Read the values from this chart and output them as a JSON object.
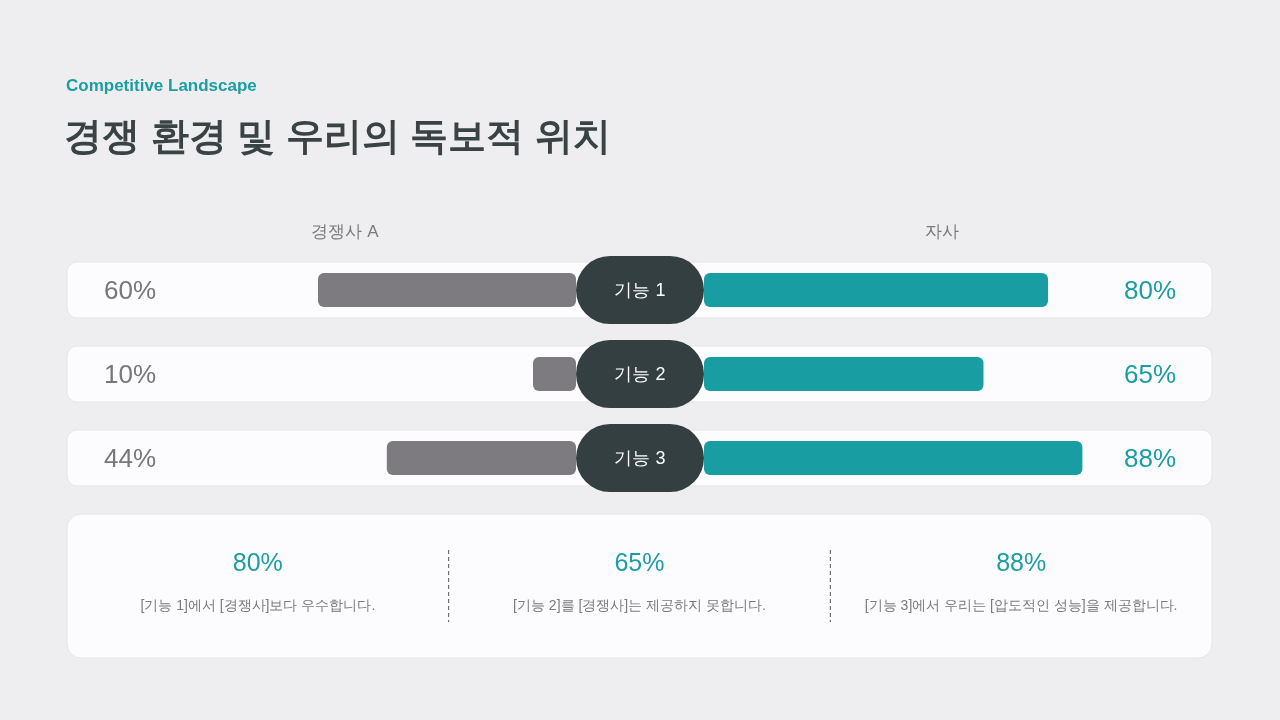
{
  "chart_data": [
    {
      "type": "bar",
      "orientation": "horizontal",
      "subtitle": "Competitive Landscape",
      "title": "경쟁 환경 및 우리의 독보적 위치",
      "categories": [
        "기능 1",
        "기능 2",
        "기능 3"
      ],
      "series": [
        {
          "name": "경쟁사 A",
          "color": "#7d7b7f",
          "values": [
            60,
            10,
            44
          ],
          "value_labels": [
            "60%",
            "10%",
            "44%"
          ]
        }
      ],
      "annotations": [
        "80%",
        "[기능 1]에서 [경쟁사]보다 우수합니다.",
        "65%",
        "[기능 2]를 [경쟁사]는 제공하지 못합니다.",
        "88%",
        "[기능 3]에서 우리는 [압도적인 성능]을 제공합니다."
      ]
    },
    {
      "type": "bar",
      "orientation": "horizontal",
      "tick_labels": false,
      "categories": [
        null,
        null,
        null
      ],
      "series": [
        {
          "name": "자사",
          "color": "#189ea2",
          "values": [
            80,
            65,
            88
          ],
          "value_labels": [
            "80%",
            "65%",
            "88%"
          ]
        }
      ]
    }
  ]
}
